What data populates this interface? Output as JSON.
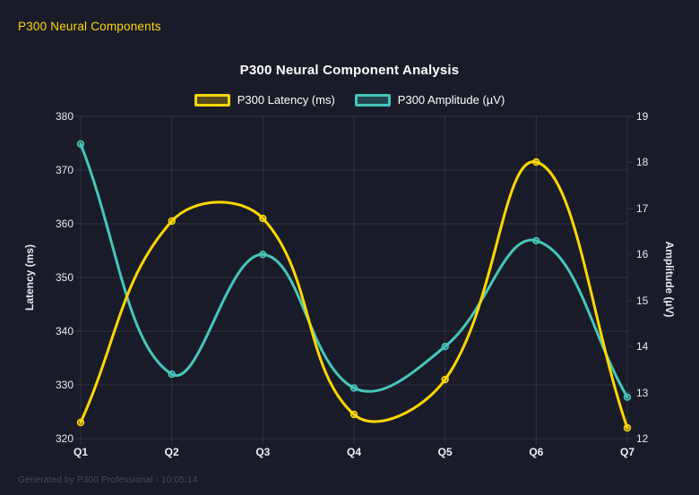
{
  "page": {
    "header_title": "P300 Neural Components",
    "header_color": "#ffd700",
    "footer": "Generated by P300 Professional - 10:05:14"
  },
  "chart_data": {
    "type": "line",
    "title": "P300 Neural Component Analysis",
    "categories": [
      "Q1",
      "Q2",
      "Q3",
      "Q4",
      "Q5",
      "Q6",
      "Q7"
    ],
    "series": [
      {
        "name": "P300 Latency (ms)",
        "axis": "left",
        "color": "#ffd700",
        "values": [
          323,
          360.5,
          361,
          324.5,
          331,
          371.5,
          322
        ]
      },
      {
        "name": "P300 Amplitude (µV)",
        "axis": "right",
        "color": "#45c7ba",
        "values": [
          18.4,
          13.4,
          16,
          13.1,
          14,
          16.3,
          12.9
        ]
      }
    ],
    "left_axis": {
      "label": "Latency (ms)",
      "min": 320,
      "max": 380,
      "step": 10,
      "ticks": [
        380,
        370,
        360,
        350,
        340,
        330,
        320
      ]
    },
    "right_axis": {
      "label": "Amplitude (µV)",
      "min": 12,
      "max": 19,
      "step": 1,
      "ticks": [
        19,
        18,
        17,
        16,
        15,
        14,
        13,
        12
      ]
    },
    "grid": true,
    "legend_position": "top",
    "line_tension": 0.4
  }
}
